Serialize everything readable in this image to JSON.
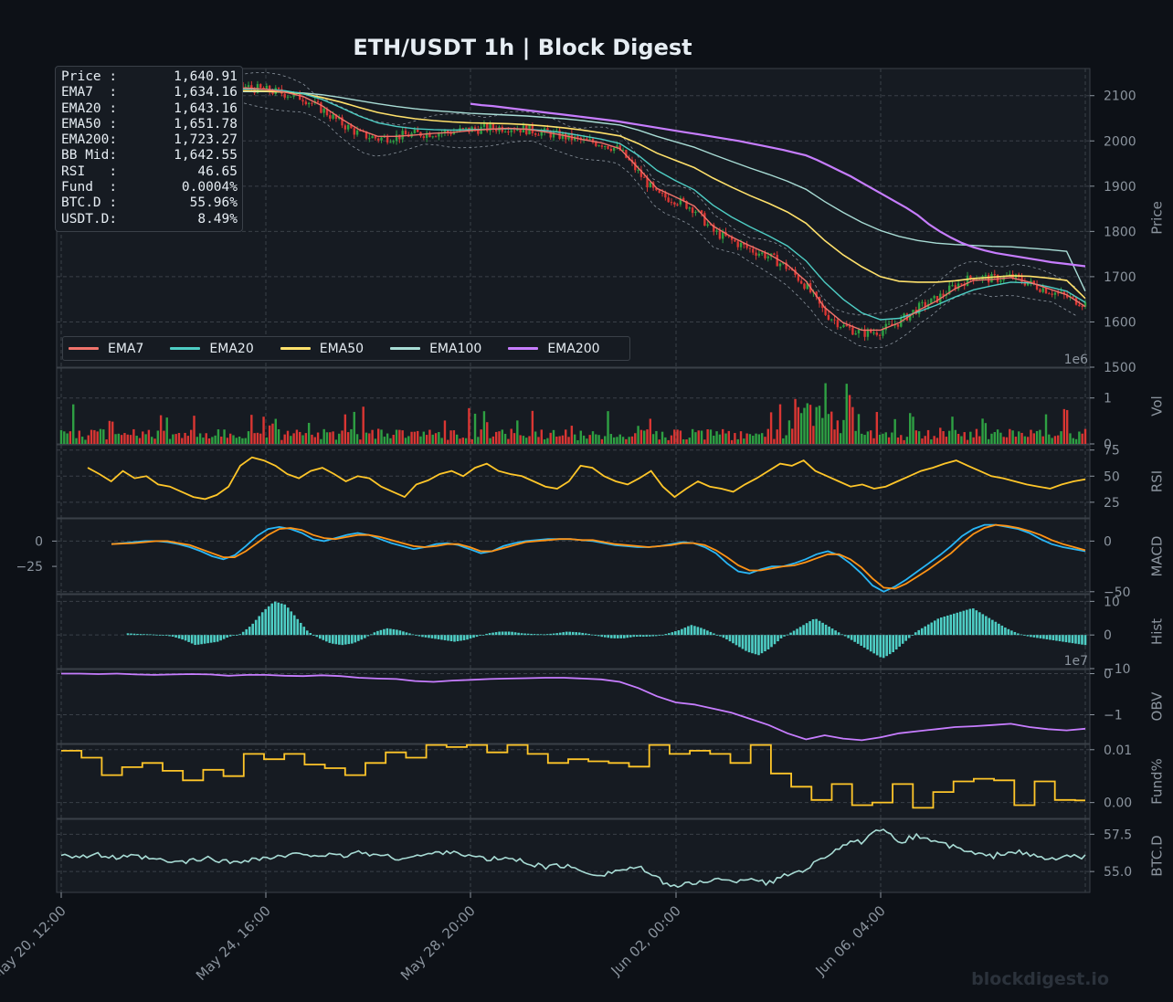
{
  "title": "ETH/USDT  1h  |  Block Digest",
  "watermark": "blockdigest.io",
  "footer_brand": "blockdigest.io",
  "info_box": [
    {
      "label": "Price :",
      "value": "1,640.91"
    },
    {
      "label": "EMA7  :",
      "value": "1,634.16"
    },
    {
      "label": "EMA20 :",
      "value": "1,643.16"
    },
    {
      "label": "EMA50 :",
      "value": "1,651.78"
    },
    {
      "label": "EMA200:",
      "value": "1,723.27"
    },
    {
      "label": "BB Mid:",
      "value": "1,642.55"
    },
    {
      "label": "RSI   :",
      "value": "46.65"
    },
    {
      "label": "Fund  :",
      "value": "0.0004%"
    },
    {
      "label": "BTC.D :",
      "value": "55.96%"
    },
    {
      "label": "USDT.D:",
      "value": "8.49%"
    }
  ],
  "legend": [
    {
      "label": "EMA7",
      "color": "#f0736b"
    },
    {
      "label": "EMA20",
      "color": "#4ecdc4"
    },
    {
      "label": "EMA50",
      "color": "#ffe16b"
    },
    {
      "label": "EMA100",
      "color": "#a8dcd5"
    },
    {
      "label": "EMA200",
      "color": "#c77dff"
    }
  ],
  "colors": {
    "background": "#0d1117",
    "panel": "#161b22",
    "grid": "#3a4048",
    "text": "#8b949e",
    "up": "#2ea043",
    "down": "#da3633",
    "rsi": "#ffc629",
    "macd": "#29b6f6",
    "signal": "#ff9315",
    "hist": "#4ecdc4",
    "obv": "#c77dff",
    "fund": "#ffc629",
    "btcd": "#a8dcd5"
  },
  "chart_data": {
    "type": "line",
    "x_ticks": [
      "May 20, 12:00",
      "May 24, 16:00",
      "May 28, 20:00",
      "Jun 02, 00:00",
      "Jun 06, 04:00"
    ],
    "panels": [
      {
        "name": "price",
        "ylabel": "Price",
        "yticks": [
          1500,
          1600,
          1700,
          1800,
          1900,
          2000,
          2100
        ],
        "ylim": [
          1500,
          2160
        ],
        "offset_label": "1e6"
      },
      {
        "name": "volume",
        "ylabel": "Vol",
        "yticks": [
          0,
          1
        ],
        "ylim": [
          0,
          1.65
        ]
      },
      {
        "name": "rsi",
        "ylabel": "RSI",
        "yticks": [
          25,
          50,
          75
        ],
        "ylim": [
          10,
          80
        ]
      },
      {
        "name": "macd",
        "ylabel": "MACD",
        "yticks_left": [
          0,
          -25
        ],
        "yticks_right": [
          0,
          -50
        ],
        "ylim": [
          -52,
          22
        ]
      },
      {
        "name": "hist",
        "ylabel": "Hist",
        "yticks": [
          -10,
          0,
          10
        ],
        "ylim": [
          -10,
          12
        ],
        "offset_label": "1e7"
      },
      {
        "name": "obv",
        "ylabel": "OBV",
        "yticks": [
          0,
          -1
        ],
        "ylim": [
          -1.7,
          0.1
        ]
      },
      {
        "name": "funding",
        "ylabel": "Fund%",
        "yticks": [
          "0.01",
          "0.00"
        ],
        "ylim": [
          -0.003,
          0.011
        ]
      },
      {
        "name": "btcd",
        "ylabel": "BTC.D",
        "yticks": [
          "57.5",
          "55.0"
        ],
        "ylim": [
          53.6,
          58.5
        ]
      }
    ],
    "price_close": [
      2128,
      2120,
      2115,
      2110,
      2112,
      2108,
      2105,
      2110,
      2115,
      2120,
      2118,
      2112,
      2105,
      2095,
      2070,
      2040,
      2015,
      2005,
      2010,
      2015,
      2018,
      2020,
      2025,
      2028,
      2030,
      2025,
      2018,
      2010,
      2000,
      1995,
      1980,
      1930,
      1880,
      1870,
      1850,
      1800,
      1780,
      1760,
      1745,
      1720,
      1680,
      1620,
      1590,
      1575,
      1580,
      1600,
      1630,
      1650,
      1680,
      1700,
      1695,
      1700,
      1685,
      1670,
      1655,
      1640
    ],
    "ema7": [
      2125,
      2121,
      2116,
      2112,
      2111,
      2109,
      2107,
      2108,
      2112,
      2116,
      2117,
      2114,
      2108,
      2098,
      2078,
      2050,
      2025,
      2010,
      2010,
      2013,
      2017,
      2019,
      2023,
      2026,
      2028,
      2026,
      2020,
      2012,
      2003,
      1996,
      1983,
      1940,
      1895,
      1876,
      1856,
      1812,
      1788,
      1768,
      1750,
      1726,
      1690,
      1632,
      1598,
      1582,
      1582,
      1598,
      1625,
      1646,
      1673,
      1692,
      1694,
      1698,
      1688,
      1674,
      1660,
      1634
    ],
    "ema20": [
      2124,
      2122,
      2118,
      2115,
      2113,
      2111,
      2109,
      2109,
      2111,
      2114,
      2115,
      2114,
      2111,
      2104,
      2092,
      2074,
      2055,
      2040,
      2032,
      2027,
      2025,
      2024,
      2025,
      2026,
      2027,
      2026,
      2023,
      2018,
      2011,
      2004,
      1994,
      1968,
      1935,
      1912,
      1892,
      1858,
      1832,
      1810,
      1790,
      1768,
      1735,
      1688,
      1650,
      1620,
      1605,
      1608,
      1622,
      1637,
      1655,
      1671,
      1680,
      1688,
      1686,
      1678,
      1668,
      1643
    ],
    "ema50": [
      2118,
      2118,
      2116,
      2115,
      2114,
      2112,
      2110,
      2110,
      2110,
      2111,
      2111,
      2110,
      2108,
      2104,
      2096,
      2086,
      2074,
      2063,
      2055,
      2049,
      2045,
      2042,
      2040,
      2039,
      2038,
      2036,
      2033,
      2029,
      2024,
      2018,
      2011,
      1994,
      1973,
      1957,
      1941,
      1918,
      1898,
      1879,
      1862,
      1843,
      1818,
      1780,
      1748,
      1722,
      1700,
      1690,
      1688,
      1688,
      1691,
      1696,
      1699,
      1702,
      1701,
      1697,
      1692,
      1652
    ],
    "ema100": [
      2110,
      2111,
      2111,
      2111,
      2111,
      2110,
      2109,
      2109,
      2109,
      2109,
      2109,
      2109,
      2108,
      2106,
      2102,
      2096,
      2089,
      2082,
      2076,
      2071,
      2067,
      2064,
      2061,
      2059,
      2057,
      2055,
      2052,
      2049,
      2045,
      2040,
      2035,
      2024,
      2010,
      1998,
      1986,
      1970,
      1955,
      1940,
      1926,
      1911,
      1893,
      1866,
      1842,
      1820,
      1802,
      1789,
      1780,
      1774,
      1771,
      1769,
      1767,
      1766,
      1763,
      1760,
      1756,
      1668
    ],
    "ema200": [
      2082,
      2079,
      2077,
      2074,
      2071,
      2068,
      2065,
      2062,
      2059,
      2056,
      2053,
      2050,
      2047,
      2044,
      2040,
      2036,
      2032,
      2028,
      2024,
      2020,
      2016,
      2012,
      2008,
      2004,
      2000,
      1995,
      1990,
      1985,
      1980,
      1974,
      1968,
      1958,
      1946,
      1934,
      1922,
      1908,
      1894,
      1880,
      1866,
      1852,
      1836,
      1816,
      1800,
      1786,
      1774,
      1765,
      1758,
      1752,
      1748,
      1744,
      1740,
      1736,
      1732,
      1729,
      1726,
      1723
    ],
    "ema200_start_index": 20,
    "rsi": [
      58,
      52,
      45,
      55,
      48,
      50,
      42,
      40,
      35,
      30,
      28,
      32,
      40,
      60,
      68,
      65,
      60,
      52,
      48,
      55,
      58,
      52,
      45,
      50,
      48,
      40,
      35,
      30,
      42,
      46,
      52,
      55,
      50,
      58,
      62,
      55,
      52,
      50,
      45,
      40,
      38,
      45,
      60,
      58,
      50,
      45,
      42,
      48,
      55,
      40,
      30,
      38,
      45,
      40,
      38,
      35,
      42,
      48,
      55,
      62,
      60,
      65,
      55,
      50,
      45,
      40,
      42,
      38,
      40,
      45,
      50,
      55,
      58,
      62,
      65,
      60,
      55,
      50,
      48,
      45,
      42,
      40,
      38,
      42,
      45,
      47
    ],
    "macd": [
      -3,
      -2,
      -1,
      0,
      0,
      -1,
      -3,
      -6,
      -10,
      -15,
      -18,
      -14,
      -5,
      5,
      12,
      14,
      12,
      8,
      2,
      0,
      3,
      6,
      8,
      6,
      2,
      -2,
      -5,
      -8,
      -6,
      -3,
      -2,
      -4,
      -8,
      -12,
      -10,
      -5,
      -2,
      0,
      1,
      2,
      2,
      2,
      1,
      0,
      -2,
      -4,
      -5,
      -6,
      -6,
      -5,
      -3,
      -1,
      -2,
      -6,
      -12,
      -22,
      -30,
      -32,
      -28,
      -25,
      -25,
      -22,
      -18,
      -13,
      -10,
      -14,
      -22,
      -32,
      -44,
      -50,
      -45,
      -38,
      -30,
      -22,
      -14,
      -5,
      5,
      12,
      16,
      16,
      14,
      12,
      8,
      2,
      -3,
      -6,
      -8,
      -10
    ],
    "macd_signal": [
      -3,
      -2.5,
      -2,
      -1,
      0,
      0,
      -2,
      -4,
      -8,
      -12,
      -16,
      -16,
      -10,
      -2,
      6,
      12,
      13,
      11,
      6,
      3,
      2,
      4,
      6,
      6,
      4,
      1,
      -2,
      -5,
      -6,
      -5,
      -3,
      -3,
      -6,
      -10,
      -10,
      -7,
      -4,
      -1,
      0,
      1,
      2,
      2,
      1,
      1,
      -1,
      -3,
      -4,
      -5,
      -6,
      -5,
      -4,
      -2,
      -2,
      -4,
      -9,
      -16,
      -24,
      -29,
      -29,
      -27,
      -25,
      -24,
      -21,
      -17,
      -13,
      -13,
      -18,
      -26,
      -37,
      -46,
      -47,
      -42,
      -35,
      -28,
      -20,
      -12,
      -2,
      7,
      13,
      16,
      15,
      13,
      10,
      6,
      1,
      -3,
      -6,
      -9
    ],
    "hist": [
      0.5,
      0.3,
      0.2,
      0,
      -0.5,
      -1.5,
      -3,
      -2.5,
      -2,
      -0.5,
      0.3,
      3,
      7,
      10,
      9,
      5,
      1,
      -1,
      -2.5,
      -3,
      -2.5,
      -1,
      1,
      2,
      1.5,
      0.5,
      -0.5,
      -1,
      -1.5,
      -2,
      -1.5,
      -0.5,
      0.5,
      1,
      1,
      0.5,
      0.3,
      0.2,
      0.5,
      1,
      0.8,
      0.3,
      -0.5,
      -1,
      -1,
      -0.5,
      -0.5,
      -0.3,
      0.5,
      1.5,
      3,
      2,
      0.5,
      -1,
      -3,
      -5,
      -6,
      -4,
      -1,
      1,
      3,
      5,
      3,
      1,
      -1,
      -3,
      -5,
      -7,
      -5,
      -2,
      1,
      3,
      5,
      6,
      7,
      8,
      6,
      4,
      2,
      0.5,
      -0.5,
      -1,
      -1.5,
      -2,
      -2.5,
      -3
    ],
    "obv": [
      0,
      0,
      -0.01,
      0,
      -0.02,
      -0.03,
      -0.02,
      -0.01,
      -0.02,
      -0.05,
      -0.03,
      -0.03,
      -0.05,
      -0.06,
      -0.04,
      -0.06,
      -0.1,
      -0.12,
      -0.13,
      -0.18,
      -0.2,
      -0.17,
      -0.15,
      -0.13,
      -0.12,
      -0.11,
      -0.1,
      -0.1,
      -0.12,
      -0.14,
      -0.2,
      -0.35,
      -0.55,
      -0.7,
      -0.75,
      -0.85,
      -0.95,
      -1.1,
      -1.25,
      -1.45,
      -1.6,
      -1.5,
      -1.58,
      -1.62,
      -1.55,
      -1.45,
      -1.4,
      -1.35,
      -1.3,
      -1.28,
      -1.25,
      -1.22,
      -1.3,
      -1.35,
      -1.38,
      -1.34
    ],
    "funding": [
      0.0098,
      0.0098,
      0.0085,
      0.0085,
      0.0052,
      0.0052,
      0.0067,
      0.0067,
      0.0075,
      0.0075,
      0.006,
      0.006,
      0.0042,
      0.0042,
      0.0062,
      0.0062,
      0.005,
      0.005,
      0.0092,
      0.0092,
      0.0082,
      0.0082,
      0.0092,
      0.0092,
      0.0072,
      0.0072,
      0.0065,
      0.0065,
      0.0052,
      0.0052,
      0.0075,
      0.0075,
      0.0095,
      0.0095,
      0.0085,
      0.0085,
      0.0109,
      0.0109,
      0.0105,
      0.0105,
      0.0109,
      0.0109,
      0.0095,
      0.0095,
      0.0109,
      0.0109,
      0.0092,
      0.0092,
      0.0075,
      0.0075,
      0.0082,
      0.0082,
      0.0078,
      0.0078,
      0.0075,
      0.0075,
      0.0068,
      0.0068,
      0.0109,
      0.0109,
      0.0092,
      0.0092,
      0.0098,
      0.0098,
      0.0092,
      0.0092,
      0.0075,
      0.0075,
      0.0109,
      0.0109,
      0.0055,
      0.0055,
      0.003,
      0.003,
      0.0005,
      0.0005,
      0.0035,
      0.0035,
      -0.0005,
      -0.0005,
      0,
      0,
      0.0035,
      0.0035,
      -0.001,
      -0.001,
      0.002,
      0.002,
      0.004,
      0.004,
      0.0045,
      0.0045,
      0.0042,
      0.0042,
      -0.0005,
      -0.0005,
      0.004,
      0.004,
      0.0005,
      0.0005,
      0.0004
    ],
    "btcd": [
      56.2,
      56.0,
      56.1,
      55.9,
      56.0,
      55.8,
      55.6,
      55.7,
      55.9,
      55.6,
      55.8,
      55.9,
      56.0,
      56.2,
      56.1,
      56.0,
      56.3,
      56.1,
      55.9,
      56.0,
      56.2,
      56.4,
      56.0,
      55.8,
      55.9,
      55.6,
      55.3,
      55.4,
      55.0,
      54.8,
      55.1,
      55.3,
      54.5,
      54.0,
      54.2,
      54.5,
      54.3,
      54.6,
      54.2,
      54.8,
      55.2,
      56.0,
      56.8,
      57.0,
      57.8,
      57.0,
      57.4,
      57.0,
      56.6,
      56.2,
      56.0,
      56.4,
      56.1,
      55.8,
      56.0,
      55.96
    ]
  }
}
